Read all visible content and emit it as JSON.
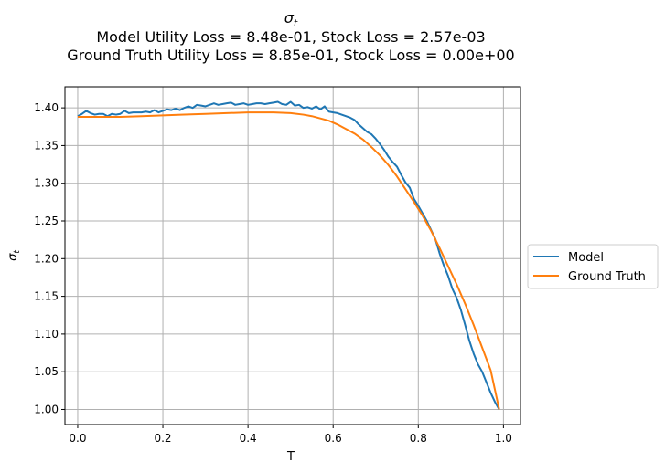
{
  "chart_data": {
    "type": "line",
    "title_symbol": "σ",
    "title_subscript": "t",
    "title_line2": "Model Utility Loss = 8.48e-01, Stock Loss = 2.57e-03",
    "title_line3": "Ground Truth Utility Loss = 8.85e-01, Stock Loss = 0.00e+00",
    "xlabel": "T",
    "ylabel_symbol": "σ",
    "ylabel_subscript": "t",
    "xlim": [
      -0.03,
      1.04
    ],
    "ylim": [
      0.98,
      1.428
    ],
    "xticks": [
      0.0,
      0.2,
      0.4,
      0.6,
      0.8,
      1.0
    ],
    "xtick_labels": [
      "0.0",
      "0.2",
      "0.4",
      "0.6",
      "0.8",
      "1.0"
    ],
    "yticks": [
      1.0,
      1.05,
      1.1,
      1.15,
      1.2,
      1.25,
      1.3,
      1.35,
      1.4
    ],
    "ytick_labels": [
      "1.00",
      "1.05",
      "1.10",
      "1.15",
      "1.20",
      "1.25",
      "1.30",
      "1.35",
      "1.40"
    ],
    "grid": true,
    "legend_position": "center-right-outside",
    "series": [
      {
        "name": "Model",
        "color": "#1f77b4",
        "x": [
          0.0,
          0.01,
          0.02,
          0.03,
          0.04,
          0.05,
          0.06,
          0.07,
          0.08,
          0.09,
          0.1,
          0.11,
          0.12,
          0.13,
          0.14,
          0.15,
          0.16,
          0.17,
          0.18,
          0.19,
          0.2,
          0.21,
          0.22,
          0.23,
          0.24,
          0.25,
          0.26,
          0.27,
          0.28,
          0.29,
          0.3,
          0.31,
          0.32,
          0.33,
          0.34,
          0.35,
          0.36,
          0.37,
          0.38,
          0.39,
          0.4,
          0.41,
          0.42,
          0.43,
          0.44,
          0.45,
          0.46,
          0.47,
          0.48,
          0.49,
          0.5,
          0.51,
          0.52,
          0.53,
          0.54,
          0.55,
          0.56,
          0.57,
          0.58,
          0.59,
          0.6,
          0.61,
          0.62,
          0.63,
          0.64,
          0.65,
          0.66,
          0.67,
          0.68,
          0.69,
          0.7,
          0.71,
          0.72,
          0.73,
          0.74,
          0.75,
          0.76,
          0.77,
          0.78,
          0.79,
          0.8,
          0.81,
          0.82,
          0.83,
          0.84,
          0.85,
          0.86,
          0.87,
          0.88,
          0.89,
          0.9,
          0.91,
          0.92,
          0.93,
          0.94,
          0.95,
          0.96,
          0.97,
          0.98,
          0.99
        ],
        "y": [
          1.389,
          1.392,
          1.396,
          1.393,
          1.391,
          1.392,
          1.392,
          1.389,
          1.392,
          1.391,
          1.392,
          1.396,
          1.393,
          1.394,
          1.394,
          1.394,
          1.395,
          1.394,
          1.397,
          1.394,
          1.396,
          1.398,
          1.397,
          1.399,
          1.397,
          1.4,
          1.402,
          1.4,
          1.404,
          1.403,
          1.402,
          1.404,
          1.406,
          1.404,
          1.405,
          1.406,
          1.407,
          1.404,
          1.405,
          1.406,
          1.404,
          1.405,
          1.406,
          1.406,
          1.405,
          1.406,
          1.407,
          1.408,
          1.405,
          1.404,
          1.408,
          1.403,
          1.404,
          1.4,
          1.401,
          1.399,
          1.402,
          1.398,
          1.402,
          1.395,
          1.394,
          1.393,
          1.391,
          1.389,
          1.387,
          1.384,
          1.378,
          1.373,
          1.368,
          1.365,
          1.359,
          1.352,
          1.344,
          1.335,
          1.328,
          1.322,
          1.311,
          1.301,
          1.294,
          1.279,
          1.27,
          1.26,
          1.25,
          1.238,
          1.226,
          1.207,
          1.191,
          1.177,
          1.16,
          1.148,
          1.132,
          1.112,
          1.091,
          1.074,
          1.06,
          1.05,
          1.036,
          1.022,
          1.01,
          1.0
        ]
      },
      {
        "name": "Ground Truth",
        "color": "#ff7f0e",
        "x": [
          0.0,
          0.05,
          0.1,
          0.15,
          0.2,
          0.25,
          0.3,
          0.35,
          0.4,
          0.43,
          0.46,
          0.5,
          0.53,
          0.55,
          0.57,
          0.59,
          0.61,
          0.63,
          0.65,
          0.67,
          0.69,
          0.71,
          0.73,
          0.75,
          0.77,
          0.79,
          0.81,
          0.83,
          0.85,
          0.87,
          0.89,
          0.91,
          0.93,
          0.95,
          0.97,
          0.99
        ],
        "y": [
          1.388,
          1.388,
          1.388,
          1.389,
          1.39,
          1.391,
          1.392,
          1.393,
          1.394,
          1.394,
          1.394,
          1.393,
          1.391,
          1.389,
          1.386,
          1.383,
          1.378,
          1.372,
          1.366,
          1.358,
          1.348,
          1.337,
          1.324,
          1.309,
          1.292,
          1.275,
          1.257,
          1.237,
          1.214,
          1.19,
          1.166,
          1.14,
          1.112,
          1.082,
          1.052,
          1.0
        ]
      }
    ]
  }
}
